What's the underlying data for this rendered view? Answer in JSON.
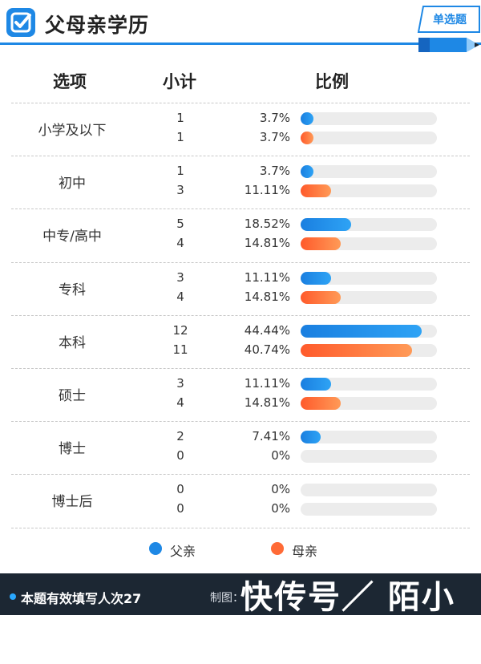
{
  "header": {
    "title": "父母亲学历",
    "tag": "单选题",
    "icon": "checkmark-icon",
    "accent_color": "#1e88e5"
  },
  "columns": {
    "option": "选项",
    "subtotal": "小计",
    "ratio": "比例"
  },
  "legend": {
    "father": {
      "label": "父亲",
      "color": "#1e88e5"
    },
    "mother": {
      "label": "母亲",
      "color": "#ff6a36"
    }
  },
  "chart_data": {
    "type": "bar",
    "orientation": "horizontal",
    "categories": [
      "小学及以下",
      "初中",
      "中专/高中",
      "专科",
      "本科",
      "硕士",
      "博士",
      "博士后"
    ],
    "series": [
      {
        "name": "父亲",
        "counts": [
          "1",
          "1",
          "5",
          "3",
          "12",
          "3",
          "2",
          "0"
        ],
        "percent_labels": [
          "3.7%",
          "3.7%",
          "18.52%",
          "11.11%",
          "44.44%",
          "11.11%",
          "7.41%",
          "0%"
        ],
        "values": [
          3.7,
          3.7,
          18.52,
          11.11,
          44.44,
          11.11,
          7.41,
          0
        ]
      },
      {
        "name": "母亲",
        "counts": [
          "1",
          "3",
          "4",
          "4",
          "11",
          "4",
          "0",
          "0"
        ],
        "percent_labels": [
          "3.7%",
          "11.11%",
          "14.81%",
          "14.81%",
          "40.74%",
          "14.81%",
          "0%",
          "0%"
        ],
        "values": [
          3.7,
          11.11,
          14.81,
          14.81,
          40.74,
          14.81,
          0,
          0
        ]
      }
    ],
    "xlim": [
      0,
      50
    ],
    "grid": false,
    "legend_position": "bottom"
  },
  "footer": {
    "left": "本题有效填写人次27",
    "right": "制图：",
    "watermark": "快传号／ 陌小姐"
  }
}
